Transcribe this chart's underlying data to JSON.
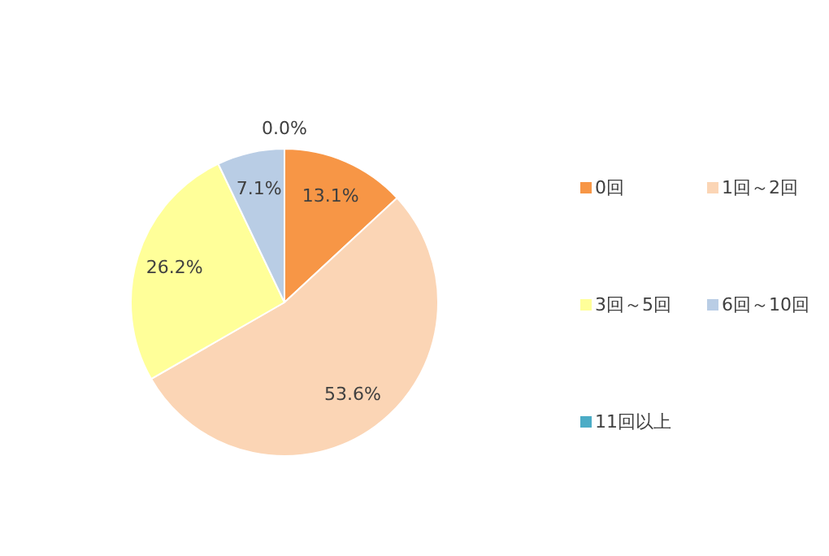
{
  "chart_data": {
    "type": "pie",
    "categories": [
      "0回",
      "1回～2回",
      "3回～5回",
      "6回～10回",
      "11回以上"
    ],
    "values": [
      13.1,
      53.6,
      26.2,
      7.1,
      0.0
    ],
    "colors": [
      "#f79646",
      "#fbd5b5",
      "#ffff99",
      "#b9cde5",
      "#4bacc6"
    ],
    "value_labels": [
      "13.1%",
      "53.6%",
      "26.2%",
      "7.1%",
      "0.0%"
    ],
    "legend": "right"
  }
}
